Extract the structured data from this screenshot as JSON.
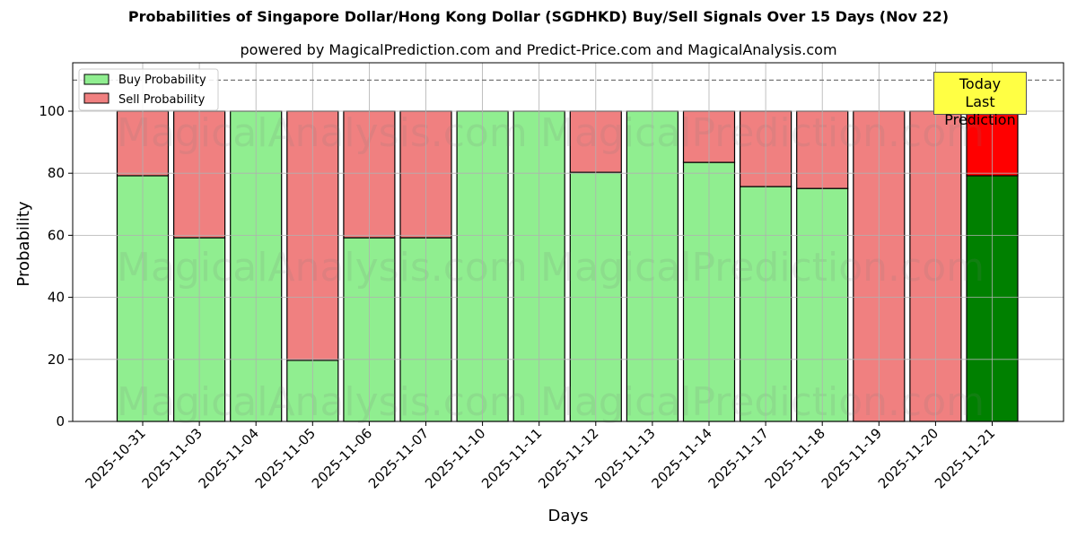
{
  "header": {
    "title": "Probabilities of Singapore Dollar/Hong Kong Dollar (SGDHKD) Buy/Sell Signals Over 15 Days (Nov 22)",
    "subtitle": "powered by MagicalPrediction.com and Predict-Price.com and MagicalAnalysis.com"
  },
  "legend": {
    "buy_label": "Buy Probability",
    "sell_label": "Sell Probability"
  },
  "annotation": {
    "line1": "Today",
    "line2": "Last Prediction"
  },
  "watermarks": [
    "MagicalAnalysis.com",
    "MagicalPrediction.com"
  ],
  "colors": {
    "buy": "#90ee90",
    "sell": "#f08080",
    "today_buy": "#008000",
    "today_sell": "#ff0000",
    "annotation_bg": "#ffff44"
  },
  "chart_data": {
    "type": "bar",
    "stacked": true,
    "title": "Probabilities of Singapore Dollar/Hong Kong Dollar (SGDHKD) Buy/Sell Signals Over 15 Days (Nov 22)",
    "subtitle": "powered by MagicalPrediction.com and Predict-Price.com and MagicalAnalysis.com",
    "xlabel": "Days",
    "ylabel": "Probability",
    "ylim": [
      0,
      115
    ],
    "yticks": [
      0,
      20,
      40,
      60,
      80,
      100
    ],
    "grid": true,
    "legend_position": "upper left",
    "reference_line": 110,
    "categories": [
      "2025-10-31",
      "2025-11-03",
      "2025-11-04",
      "2025-11-05",
      "2025-11-06",
      "2025-11-07",
      "2025-11-10",
      "2025-11-11",
      "2025-11-12",
      "2025-11-13",
      "2025-11-14",
      "2025-11-17",
      "2025-11-18",
      "2025-11-19",
      "2025-11-20",
      "2025-11-21"
    ],
    "series": [
      {
        "name": "Buy Probability",
        "values": [
          79.2,
          59.2,
          100,
          19.7,
          59.2,
          59.2,
          100,
          100,
          80.3,
          100,
          83.5,
          75.7,
          75.1,
          0,
          0,
          79.2
        ]
      },
      {
        "name": "Sell Probability",
        "values": [
          20.8,
          40.8,
          0,
          80.3,
          40.8,
          40.8,
          0,
          0,
          19.7,
          0,
          16.5,
          24.3,
          24.9,
          100,
          100,
          20.8
        ]
      }
    ],
    "highlight_last": true
  }
}
